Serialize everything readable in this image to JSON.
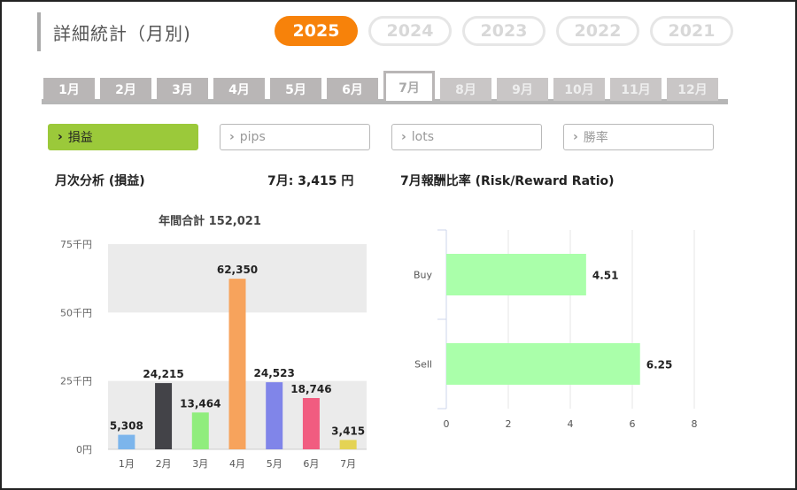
{
  "page": {
    "title": "詳細統計（月別)",
    "years": [
      {
        "label": "2025",
        "active": true
      },
      {
        "label": "2024",
        "active": false
      },
      {
        "label": "2023",
        "active": false
      },
      {
        "label": "2022",
        "active": false
      },
      {
        "label": "2021",
        "active": false
      }
    ],
    "months": [
      {
        "label": "1月",
        "state": "normal"
      },
      {
        "label": "2月",
        "state": "normal"
      },
      {
        "label": "3月",
        "state": "normal"
      },
      {
        "label": "4月",
        "state": "normal"
      },
      {
        "label": "5月",
        "state": "normal"
      },
      {
        "label": "6月",
        "state": "normal"
      },
      {
        "label": "7月",
        "state": "active"
      },
      {
        "label": "8月",
        "state": "disabled"
      },
      {
        "label": "9月",
        "state": "disabled"
      },
      {
        "label": "10月",
        "state": "disabled"
      },
      {
        "label": "11月",
        "state": "disabled"
      },
      {
        "label": "12月",
        "state": "disabled"
      }
    ],
    "metrics": [
      {
        "label": "損益",
        "active": true
      },
      {
        "label": "pips",
        "active": false
      },
      {
        "label": "lots",
        "active": false
      },
      {
        "label": "勝率",
        "active": false
      }
    ],
    "chevron_icon": "chevron-right-icon",
    "monthly_title": "月次分析 (損益)",
    "monthly_value": "7月: 3,415 円",
    "ratio_title": "7月報酬比率 (Risk/Reward Ratio)",
    "colors": {
      "accent_year": "#f7820a",
      "accent_metric": "#9bc93a"
    }
  },
  "chart_data": [
    {
      "type": "bar",
      "title": "年間合計 152,021",
      "categories": [
        "1月",
        "2月",
        "3月",
        "4月",
        "5月",
        "6月",
        "7月"
      ],
      "values": [
        5308,
        24215,
        13464,
        62350,
        24523,
        18746,
        3415
      ],
      "value_labels": [
        "5,308",
        "24,215",
        "13,464",
        "62,350",
        "24,523",
        "18,746",
        "3,415"
      ],
      "colors": [
        "#7cb5ec",
        "#434348",
        "#90ed7d",
        "#f7a35c",
        "#8085e9",
        "#f15c80",
        "#e4d354"
      ],
      "ylim": [
        0,
        75000
      ],
      "yticks": [
        {
          "value": 0,
          "label": "0円"
        },
        {
          "value": 25000,
          "label": "25千円"
        },
        {
          "value": 50000,
          "label": "50千円"
        },
        {
          "value": 75000,
          "label": "75千円"
        }
      ],
      "bands": [
        [
          0,
          25000
        ],
        [
          50000,
          75000
        ]
      ],
      "band_color": "#ebebeb"
    },
    {
      "type": "bar",
      "orientation": "horizontal",
      "categories": [
        "Buy",
        "Sell"
      ],
      "values": [
        4.51,
        6.25
      ],
      "value_labels": [
        "4.51",
        "6.25"
      ],
      "color": "#aaffaa",
      "xlim": [
        0,
        8
      ],
      "xticks": [
        "0",
        "2",
        "4",
        "6",
        "8"
      ],
      "grid": true
    }
  ]
}
